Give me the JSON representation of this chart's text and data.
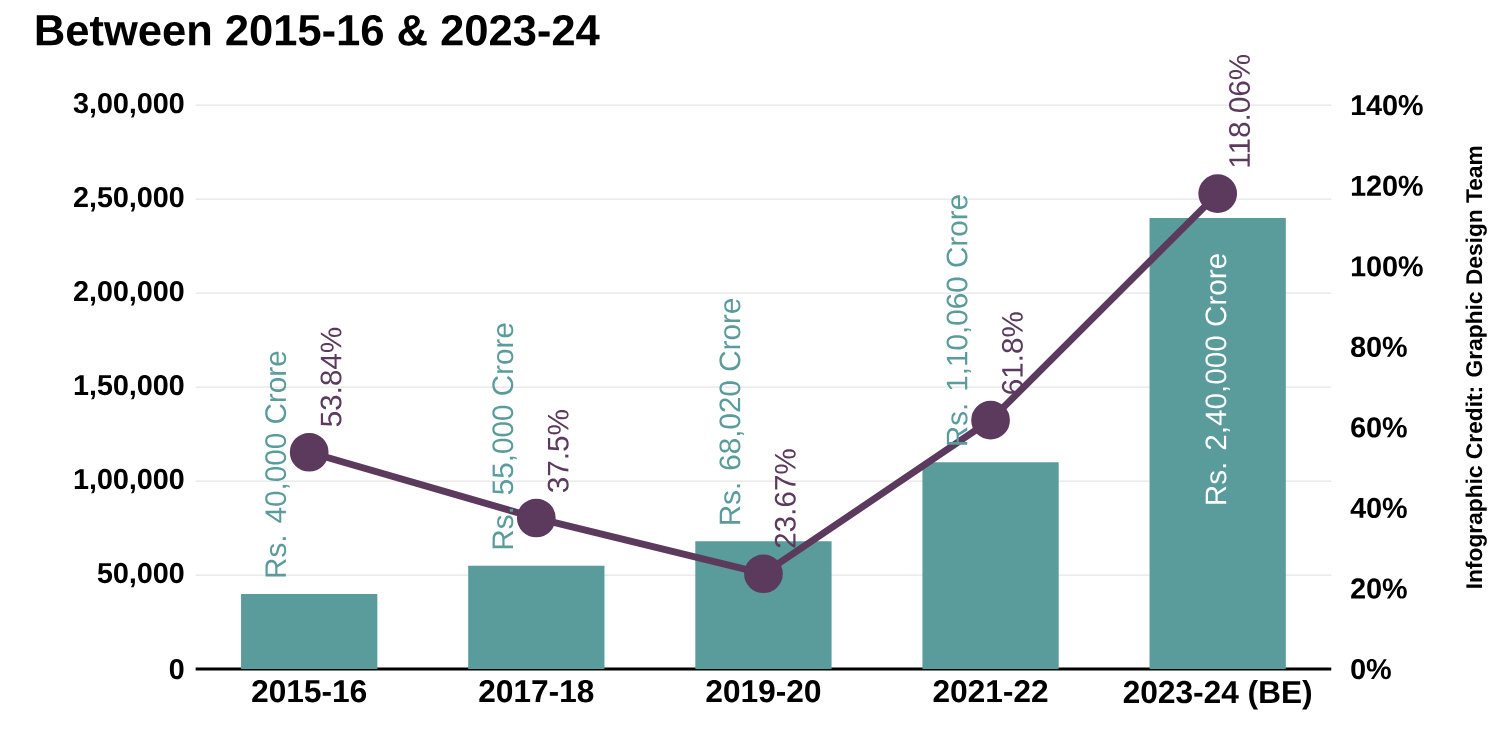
{
  "chart_data": {
    "type": "bar",
    "title": "Between 2015-16 & 2023-24",
    "categories": [
      "2015-16",
      "2017-18",
      "2019-20",
      "2021-22",
      "2023-24 (BE)"
    ],
    "series": [
      {
        "color": "#5a9c9c",
        "values": [
          40000,
          55000,
          68020,
          110060,
          240000
        ],
        "value_labels": [
          "Rs. 40,000 Crore",
          "Rs. 55,000 Crore",
          "Rs. 68,020 Crore",
          "Rs. 1,10,060 Crore",
          "Rs. 2,40,000 Crore"
        ]
      },
      {
        "type": "line",
        "axis": "y2",
        "color": "#5b3a5e",
        "marker": "circle",
        "values": [
          53.84,
          37.5,
          23.67,
          61.8,
          118.06
        ],
        "value_labels": [
          "53.84%",
          "37.5%",
          "23.67%",
          "61.8%",
          "118.06%"
        ]
      }
    ],
    "ylim": [
      0,
      300000
    ],
    "yticks": [
      0,
      {
        "value": 50000,
        "label": "50,000"
      },
      {
        "value": 100000,
        "label": "1,00,000"
      },
      {
        "value": 150000,
        "label": "1,50,000"
      },
      {
        "value": 200000,
        "label": "2,00,000"
      },
      {
        "value": 250000,
        "label": "2,50,000"
      },
      {
        "value": 300000,
        "label": "3,00,000"
      }
    ],
    "y2lim": [
      0,
      140
    ],
    "y2ticks": [
      {
        "value": 0,
        "label": "0%"
      },
      {
        "value": 20,
        "label": "20%"
      },
      {
        "value": 40,
        "label": "40%"
      },
      {
        "value": 60,
        "label": "60%"
      },
      {
        "value": 80,
        "label": "80%"
      },
      {
        "value": 100,
        "label": "100%"
      },
      {
        "value": 120,
        "label": "120%"
      },
      {
        "value": 140,
        "label": "140%"
      }
    ],
    "grid": "y",
    "legend": false,
    "annotations": [
      "Infographic Credit: Graphic Design Team"
    ]
  }
}
